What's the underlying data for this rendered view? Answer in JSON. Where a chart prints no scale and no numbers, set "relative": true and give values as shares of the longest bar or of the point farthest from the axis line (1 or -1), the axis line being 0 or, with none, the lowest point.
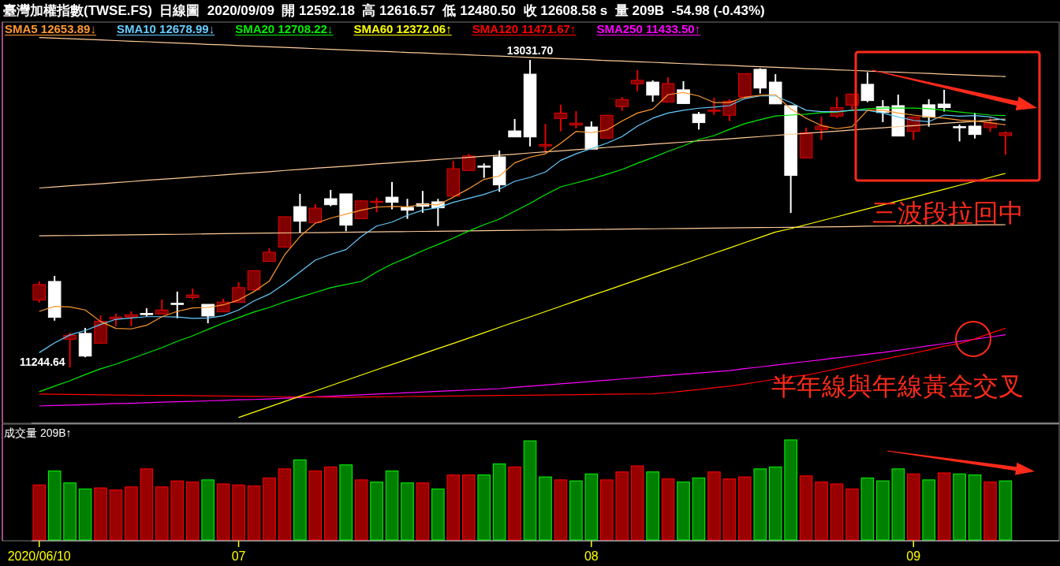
{
  "chart_data": [
    {
      "type": "candlestick",
      "title": "臺灣加權指數(TWSE.FS)  日線圖  2020/09/09  開 12592.18  高 12616.57  低 12480.50  收 12608.58 s  量 209B  -54.98 (-0.43%)",
      "categories": [
        null,
        null,
        null,
        null,
        null,
        null,
        null,
        null,
        null,
        null,
        null,
        null,
        null,
        null,
        null,
        null,
        null,
        null,
        null,
        null,
        null,
        null,
        null,
        null,
        null,
        null,
        null,
        null,
        null,
        null,
        null,
        null,
        null,
        null,
        null,
        null,
        null,
        null,
        null,
        null,
        null,
        null,
        null,
        null,
        null,
        null,
        null,
        null,
        null,
        null,
        null,
        null,
        null,
        null,
        null,
        null,
        null,
        null,
        null,
        null,
        null,
        null,
        null,
        null
      ],
      "ohlc": [
        [
          11636,
          11744,
          11622,
          11726
        ],
        [
          11744,
          11776,
          11516,
          11535
        ],
        [
          11408,
          11446,
          11244.64,
          11431
        ],
        [
          11442,
          11474,
          11303,
          11310
        ],
        [
          11385,
          11547,
          11385,
          11512
        ],
        [
          11526,
          11556,
          11484,
          11537
        ],
        [
          11537,
          11570,
          11484,
          11550
        ],
        [
          11558,
          11588,
          11541,
          11555
        ],
        [
          11555,
          11639,
          11555,
          11578
        ],
        [
          11617,
          11685,
          11530,
          11614
        ],
        [
          11651,
          11703,
          11640,
          11665
        ],
        [
          11611,
          11611,
          11501,
          11543
        ],
        [
          11567,
          11643,
          11567,
          11624
        ],
        [
          11622,
          11740,
          11622,
          11708
        ],
        [
          11695,
          11807,
          11691,
          11807
        ],
        [
          11860,
          11937,
          11860,
          11914
        ],
        [
          11944,
          12120,
          11944,
          12120
        ],
        [
          12179,
          12253,
          12028,
          12094
        ],
        [
          12086,
          12193,
          12086,
          12170
        ],
        [
          12225,
          12276,
          12181,
          12190
        ],
        [
          12253,
          12253,
          12036,
          12071
        ],
        [
          12109,
          12216,
          12109,
          12212
        ],
        [
          12205,
          12230,
          12146,
          12210
        ],
        [
          12234,
          12322,
          12163,
          12204
        ],
        [
          12175,
          12224,
          12108,
          12158
        ],
        [
          12196,
          12270,
          12143,
          12181
        ],
        [
          12207,
          12224,
          12066,
          12172
        ],
        [
          12240,
          12445,
          12240,
          12399
        ],
        [
          12389,
          12486,
          12389,
          12473
        ],
        [
          12415,
          12430,
          12346,
          12410
        ],
        [
          12468,
          12505,
          12265,
          12305
        ],
        [
          12619,
          12688,
          12584,
          12584
        ],
        [
          12949,
          13031.7,
          12529,
          12584
        ],
        [
          12531,
          12659,
          12494,
          12540
        ],
        [
          12691,
          12771,
          12616,
          12723
        ],
        [
          12653,
          12734,
          12634,
          12664
        ],
        [
          12642,
          12674,
          12513,
          12513
        ],
        [
          12577,
          12710,
          12577,
          12710
        ],
        [
          12760,
          12816,
          12735,
          12801
        ],
        [
          12893,
          12972,
          12850,
          12913
        ],
        [
          12903,
          12913,
          12789,
          12827
        ],
        [
          12787,
          12931,
          12787,
          12894
        ],
        [
          12858,
          12908,
          12778,
          12778
        ],
        [
          12716,
          12729,
          12627,
          12667
        ],
        [
          12735,
          12812,
          12712,
          12740
        ],
        [
          12710,
          12803,
          12676,
          12792
        ],
        [
          12815,
          12952,
          12803,
          12952
        ],
        [
          12977,
          12983,
          12836,
          12868
        ],
        [
          12903,
          12949,
          12776,
          12776
        ],
        [
          12766,
          12766,
          12142,
          12360
        ],
        [
          12462,
          12638,
          12462,
          12609
        ],
        [
          12627,
          12703,
          12566,
          12647
        ],
        [
          12705,
          12816,
          12694,
          12755
        ],
        [
          12769,
          12833,
          12734,
          12833
        ],
        [
          12890,
          12960,
          12786,
          12795
        ],
        [
          12760,
          12798,
          12670,
          12726
        ],
        [
          12766,
          12830,
          12589,
          12589
        ],
        [
          12616,
          12700,
          12566,
          12700
        ],
        [
          12771,
          12803,
          12644,
          12699
        ],
        [
          12775,
          12858,
          12731,
          12754
        ],
        [
          12644,
          12656,
          12558,
          12640
        ],
        [
          12647,
          12723,
          12575,
          12598
        ],
        [
          12638,
          12696,
          12613,
          12665
        ],
        [
          12592.18,
          12616.57,
          12480.5,
          12608.58
        ]
      ],
      "colors": [
        "#800000",
        "#ffffff",
        "#800000",
        "#ffffff",
        "#800000",
        "#800000",
        "#800000",
        "#ffffff",
        "#800000",
        "#ffffff",
        "#800000",
        "#ffffff",
        "#800000",
        "#800000",
        "#800000",
        "#800000",
        "#800000",
        "#ffffff",
        "#800000",
        "#ffffff",
        "#ffffff",
        "#800000",
        "#800000",
        "#ffffff",
        "#ffffff",
        "#ffffff",
        "#ffffff",
        "#800000",
        "#800000",
        "#ffffff",
        "#ffffff",
        "#ffffff",
        "#ffffff",
        "#800000",
        "#800000",
        "#800000",
        "#ffffff",
        "#800000",
        "#800000",
        "#800000",
        "#ffffff",
        "#800000",
        "#ffffff",
        "#ffffff",
        "#800000",
        "#800000",
        "#800000",
        "#ffffff",
        "#ffffff",
        "#ffffff",
        "#800000",
        "#800000",
        "#800000",
        "#800000",
        "#ffffff",
        "#ffffff",
        "#ffffff",
        "#800000",
        "#ffffff",
        "#ffffff",
        "#ffffff",
        "#ffffff",
        "#800000",
        "#800000"
      ],
      "series": [
        {
          "type": "line",
          "color": "#ffcc99",
          "values": [
            13162,
            13158,
            13155,
            13151,
            13148,
            13144,
            13140,
            13137,
            13133,
            13130,
            13126,
            13122,
            13119,
            13115,
            13111,
            13108,
            13104,
            13101,
            13097,
            13093,
            13090,
            13086,
            13083,
            13079,
            13075,
            13072,
            13068,
            13065,
            13061,
            13057,
            13054,
            13050,
            13046,
            13043,
            13039,
            13036,
            13032,
            13028,
            13025,
            13021,
            13018,
            13014,
            13010,
            13007,
            13003,
            13000,
            12996,
            12992,
            12989,
            12985,
            12981,
            12978,
            12974,
            12971,
            12967,
            12963,
            12960,
            12956,
            12953,
            12949,
            12945,
            12942,
            12938,
            12935
          ]
        },
        {
          "type": "line",
          "color": "#ffcc99",
          "values": [
            12287,
            12293,
            12300,
            12306,
            12312,
            12319,
            12325,
            12332,
            12338,
            12344,
            12351,
            12357,
            12363,
            12370,
            12376,
            12382,
            12389,
            12395,
            12402,
            12408,
            12414,
            12421,
            12427,
            12433,
            12440,
            12446,
            12453,
            12459,
            12465,
            12472,
            12478,
            12484,
            12491,
            12497,
            12503,
            12510,
            12516,
            12523,
            12529,
            12535,
            12542,
            12548,
            12554,
            12561,
            12567,
            12573,
            12580,
            12586,
            12593,
            12599,
            12605,
            12612,
            12618,
            12624,
            12631,
            12637,
            12644,
            12650,
            12656,
            12663,
            12669,
            12675,
            12682,
            12688
          ]
        },
        {
          "type": "line",
          "color": "#ffcc99",
          "values": [
            12009,
            12010,
            12011,
            12012,
            12013,
            12014,
            12015,
            12016,
            12017,
            12018,
            12019,
            12021,
            12022,
            12023,
            12024,
            12025,
            12026,
            12027,
            12028,
            12029,
            12030,
            12031,
            12032,
            12033,
            12034,
            12035,
            12036,
            12037,
            12038,
            12039,
            12040,
            12041,
            12042,
            12043,
            12044,
            12045,
            12046,
            12047,
            12048,
            12049,
            12050,
            12051,
            12052,
            12053,
            12054,
            12055,
            12056,
            12057,
            12058,
            12059,
            12060,
            12061,
            12062,
            12063,
            12065,
            12066,
            12067,
            12068,
            12069,
            12070,
            12071,
            12072,
            12073,
            12074
          ]
        },
        {
          "type": "line",
          "name": "SMA250 11433.50↑",
          "color": "#ff00ff",
          "values": [
            11020,
            11023,
            11025,
            11028,
            11031,
            11034,
            11036,
            11039,
            11042,
            11045,
            11047,
            11050,
            11053,
            11056,
            11058,
            11061,
            11065,
            11069,
            11073,
            11077,
            11081,
            11085,
            11089,
            11093,
            11097,
            11101,
            11105,
            11109,
            11113,
            11117,
            11121,
            11128,
            11135,
            11142,
            11149,
            11156,
            11163,
            11170,
            11177,
            11184,
            11191,
            11198,
            11205,
            11212,
            11219,
            11226,
            11237,
            11247,
            11258,
            11268,
            11279,
            11289,
            11300,
            11310,
            11321,
            11331,
            11344,
            11357,
            11370,
            11382,
            11395,
            11408,
            11421,
            11434
          ]
        },
        {
          "type": "line",
          "name": "SMA120 11471.67↑",
          "color": "#ff0000",
          "values": [
            11089,
            11088,
            11087,
            11086,
            11085,
            11084,
            11083,
            11082,
            11081,
            11081,
            11080,
            11079,
            11078,
            11077,
            11076,
            11075,
            11074,
            11073,
            11072,
            11071,
            11071,
            11072,
            11073,
            11074,
            11075,
            11076,
            11077,
            11078,
            11079,
            11080,
            11081,
            11082,
            11083,
            11084,
            11085,
            11086,
            11087,
            11088,
            11089,
            11090,
            11091,
            11098,
            11107,
            11116,
            11126,
            11135,
            11148,
            11162,
            11176,
            11190,
            11199,
            11217,
            11236,
            11254,
            11272,
            11291,
            11309,
            11327,
            11346,
            11368,
            11382,
            11410,
            11442,
            11472
          ]
        },
        {
          "type": "line",
          "name": "SMA60 12372.06↑",
          "color": "#ffff00",
          "values": [
            null,
            null,
            null,
            null,
            null,
            null,
            null,
            null,
            null,
            null,
            null,
            null,
            null,
            10953,
            10984,
            11015,
            11046,
            11077,
            11107,
            11138,
            11169,
            11200,
            11231,
            11261,
            11292,
            11323,
            11354,
            11384,
            11415,
            11446,
            11477,
            11508,
            11538,
            11569,
            11600,
            11631,
            11662,
            11692,
            11723,
            11754,
            11785,
            11816,
            11846,
            11877,
            11908,
            11938,
            11970,
            12000,
            12031,
            12051,
            12074,
            12097,
            12120,
            12143,
            12166,
            12189,
            12212,
            12234,
            12257,
            12280,
            12303,
            12326,
            12349,
            12372
          ]
        },
        {
          "type": "line",
          "name": "SMA20 12708.22↓",
          "color": "#00ee00",
          "values": [
            11103,
            11135,
            11167,
            11203,
            11236,
            11263,
            11295,
            11327,
            11359,
            11396,
            11428,
            11465,
            11501,
            11534,
            11566,
            11593,
            11625,
            11653,
            11680,
            11708,
            11726,
            11744,
            11799,
            11845,
            11882,
            11923,
            11959,
            11996,
            12037,
            12074,
            12106,
            12152,
            12198,
            12248,
            12294,
            12317,
            12340,
            12367,
            12395,
            12431,
            12464,
            12500,
            12532,
            12569,
            12592,
            12628,
            12661,
            12684,
            12706,
            12711,
            12716,
            12725,
            12729,
            12739,
            12748,
            12752,
            12752,
            12752,
            12748,
            12739,
            12729,
            12720,
            12711,
            12708
          ]
        },
        {
          "type": "line",
          "name": "SMA10 12678.99↓",
          "color": "#66ccff",
          "values": [
            11330,
            11387,
            11433,
            11459,
            11494,
            11524,
            11532,
            11539,
            11539,
            11537,
            11529,
            11532,
            11544,
            11578,
            11631,
            11670,
            11730,
            11799,
            11868,
            11901,
            11929,
            12005,
            12066,
            12089,
            12128,
            12158,
            12173,
            12204,
            12227,
            12250,
            12280,
            12326,
            12349,
            12380,
            12448,
            12486,
            12517,
            12547,
            12586,
            12647,
            12693,
            12723,
            12739,
            12751,
            12757,
            12766,
            12807,
            12822,
            12822,
            12784,
            12739,
            12731,
            12731,
            12739,
            12739,
            12723,
            12700,
            12680,
            12673,
            12711,
            12705,
            12708,
            12700,
            12679
          ]
        },
        {
          "type": "line",
          "name": "SMA5 12653.89↓",
          "color": "#ff9933",
          "values": [
            11570,
            11599,
            11596,
            11578,
            11511,
            11471,
            11468,
            11489,
            11539,
            11570,
            11590,
            11593,
            11608,
            11636,
            11685,
            11746,
            11899,
            12005,
            12082,
            12112,
            12135,
            12158,
            12176,
            12180,
            12178,
            12192,
            12189,
            12234,
            12283,
            12337,
            12357,
            12433,
            12467,
            12486,
            12547,
            12616,
            12609,
            12624,
            12677,
            12723,
            12746,
            12830,
            12842,
            12822,
            12784,
            12784,
            12815,
            12826,
            12830,
            12746,
            12693,
            12650,
            12632,
            12644,
            12739,
            12739,
            12723,
            12711,
            12700,
            12693,
            12682,
            12677,
            12667,
            12654
          ]
        }
      ],
      "annotations": [
        "13031.70",
        "11244.64",
        "三波段拉回中",
        "半年線與年線黃金交叉"
      ],
      "legend": "top left"
    },
    {
      "type": "bar",
      "title": "成交量 209B↑",
      "categories": [
        "2020/06/10",
        null,
        null,
        null,
        null,
        null,
        null,
        null,
        null,
        null,
        null,
        null,
        null,
        "07",
        null,
        null,
        null,
        null,
        null,
        null,
        null,
        null,
        null,
        null,
        null,
        null,
        null,
        null,
        null,
        null,
        null,
        null,
        null,
        null,
        null,
        null,
        "08",
        null,
        null,
        null,
        null,
        null,
        null,
        null,
        null,
        null,
        null,
        null,
        null,
        null,
        null,
        null,
        null,
        null,
        null,
        null,
        null,
        "09",
        null,
        null,
        null,
        null,
        null,
        null
      ],
      "values": [
        0.55,
        0.69,
        0.57,
        0.51,
        0.52,
        0.5,
        0.53,
        0.71,
        0.53,
        0.59,
        0.58,
        0.6,
        0.56,
        0.55,
        0.54,
        0.62,
        0.71,
        0.8,
        0.69,
        0.73,
        0.75,
        0.6,
        0.58,
        0.69,
        0.57,
        0.57,
        0.51,
        0.65,
        0.65,
        0.65,
        0.76,
        0.73,
        0.99,
        0.63,
        0.6,
        0.59,
        0.66,
        0.6,
        0.68,
        0.74,
        0.68,
        0.61,
        0.58,
        0.62,
        0.68,
        0.61,
        0.63,
        0.71,
        0.73,
        1,
        0.64,
        0.58,
        0.56,
        0.51,
        0.62,
        0.59,
        0.71,
        0.66,
        0.6,
        0.67,
        0.66,
        0.65,
        0.58,
        0.59
      ],
      "colors": [
        "#990000",
        "#008000",
        "#008000",
        "#008000",
        "#990000",
        "#990000",
        "#990000",
        "#990000",
        "#990000",
        "#990000",
        "#990000",
        "#008000",
        "#990000",
        "#990000",
        "#990000",
        "#990000",
        "#990000",
        "#008000",
        "#990000",
        "#990000",
        "#008000",
        "#990000",
        "#008000",
        "#008000",
        "#008000",
        "#990000",
        "#008000",
        "#990000",
        "#990000",
        "#008000",
        "#008000",
        "#990000",
        "#008000",
        "#008000",
        "#990000",
        "#008000",
        "#008000",
        "#990000",
        "#990000",
        "#990000",
        "#008000",
        "#990000",
        "#008000",
        "#008000",
        "#990000",
        "#990000",
        "#990000",
        "#008000",
        "#008000",
        "#008000",
        "#990000",
        "#990000",
        "#990000",
        "#990000",
        "#008000",
        "#008000",
        "#008000",
        "#990000",
        "#008000",
        "#990000",
        "#008000",
        "#008000",
        "#990000",
        "#008000"
      ],
      "relative": true,
      "tick_labels": "x"
    }
  ]
}
